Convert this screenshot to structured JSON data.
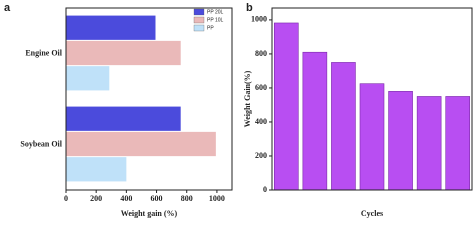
{
  "chart_data": [
    {
      "type": "hbar",
      "panel_label": "a",
      "xlabel": "Weight gain (%)",
      "categories": [
        "Engine Oil",
        "Soybean Oil"
      ],
      "series": [
        {
          "name": "PP 20L",
          "color": "#4b4bdc",
          "values": [
            593,
            760
          ]
        },
        {
          "name": "PP 10L",
          "color": "#eab9b9",
          "values": [
            760,
            993
          ]
        },
        {
          "name": "PP",
          "color": "#bfe1f9",
          "values": [
            287,
            400
          ]
        }
      ],
      "xlim": [
        0,
        1100
      ],
      "xticks": [
        0,
        200,
        400,
        600,
        800,
        1000
      ],
      "legend": "upper-right"
    },
    {
      "type": "bar",
      "panel_label": "b",
      "xlabel": "Cycles",
      "ylabel": "Weight Gain(%)",
      "categories": [
        null,
        null,
        null,
        null,
        null,
        null,
        null
      ],
      "values": [
        982,
        810,
        750,
        625,
        580,
        550,
        550
      ],
      "color": "#b84ef2",
      "ylim": [
        0,
        1070
      ],
      "yticks": [
        0,
        200,
        400,
        600,
        800,
        1000
      ]
    }
  ]
}
